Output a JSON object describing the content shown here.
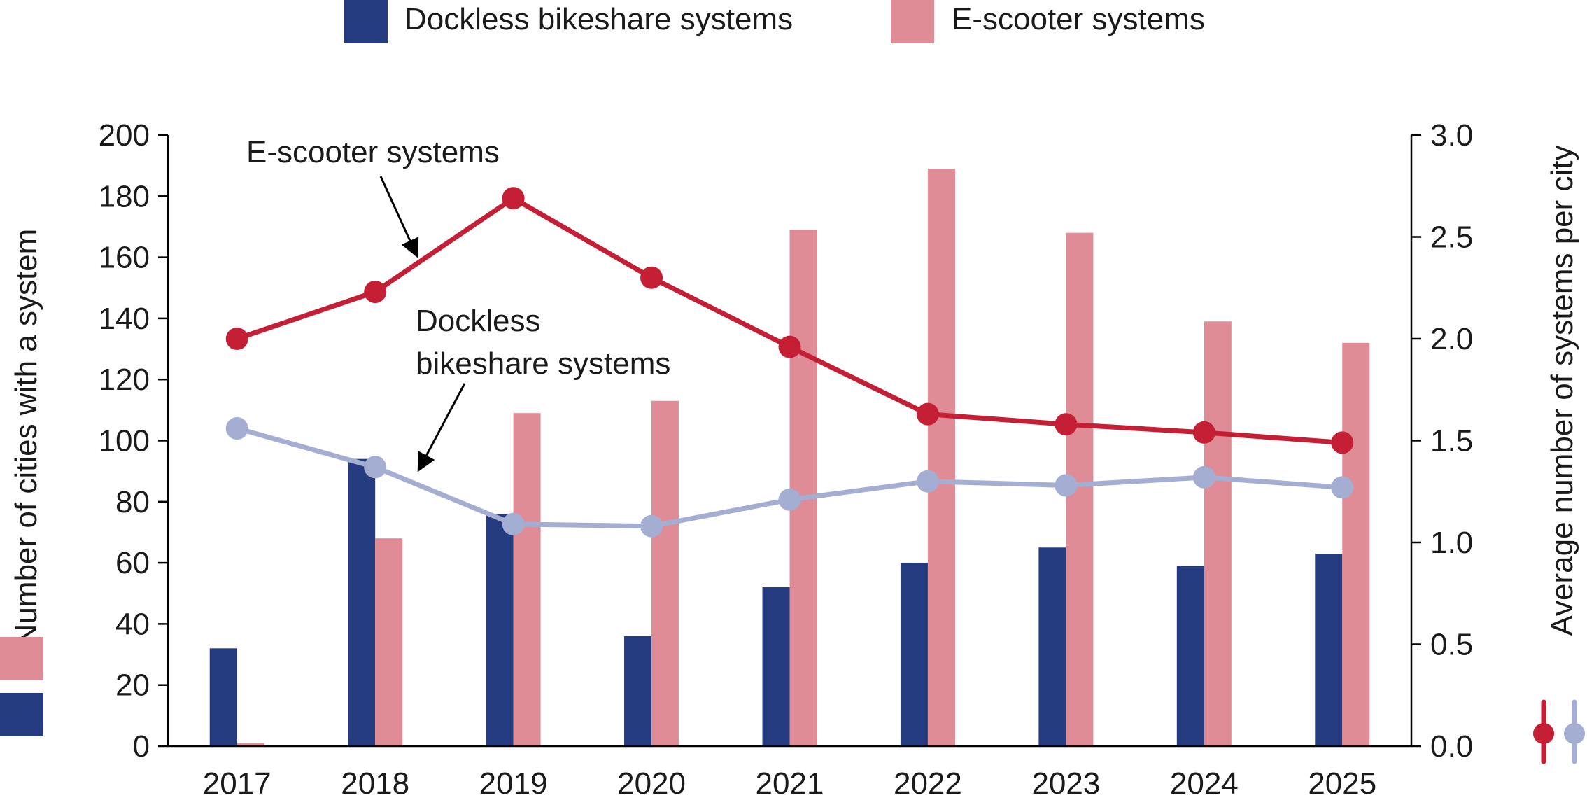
{
  "chart_data": {
    "type": "bar",
    "categories": [
      "2017",
      "2018",
      "2019",
      "2020",
      "2021",
      "2022",
      "2023",
      "2024",
      "2025"
    ],
    "series": [
      {
        "name": "Dockless bikeshare systems",
        "kind": "bar",
        "axis": "left",
        "color": "#243b80",
        "values": [
          32,
          94,
          76,
          36,
          52,
          60,
          65,
          59,
          63
        ]
      },
      {
        "name": "E-scooter systems",
        "kind": "bar",
        "axis": "left",
        "color": "#df8c97",
        "values": [
          1,
          68,
          109,
          113,
          169,
          189,
          168,
          139,
          132
        ]
      },
      {
        "name": "E-scooter systems",
        "kind": "line",
        "axis": "right",
        "color": "#c41f35",
        "values": [
          2.0,
          2.23,
          2.69,
          2.3,
          1.96,
          1.63,
          1.58,
          1.54,
          1.49
        ]
      },
      {
        "name": "Dockless bikeshare systems",
        "kind": "line",
        "axis": "right",
        "color": "#a3aed2",
        "values": [
          1.56,
          1.37,
          1.09,
          1.08,
          1.21,
          1.3,
          1.28,
          1.32,
          1.27
        ]
      }
    ],
    "ylabel": "Number of cities with a system",
    "ylim": [
      0,
      200
    ],
    "yticks": [
      "0",
      "20",
      "40",
      "60",
      "80",
      "100",
      "120",
      "140",
      "160",
      "180",
      "200"
    ],
    "y2label": "Average number of systems per city",
    "y2lim": [
      0,
      3.0
    ],
    "y2ticks": [
      "0.0",
      "0.5",
      "1.0",
      "1.5",
      "2.0",
      "2.5",
      "3.0"
    ],
    "legend": {
      "position": "top-center",
      "items": [
        "Dockless bikeshare systems",
        "E-scooter systems"
      ]
    },
    "annotations": {
      "escooter": "E-scooter systems",
      "dockless_line1": "Dockless",
      "dockless_line2": "bikeshare systems"
    },
    "grid": false
  }
}
